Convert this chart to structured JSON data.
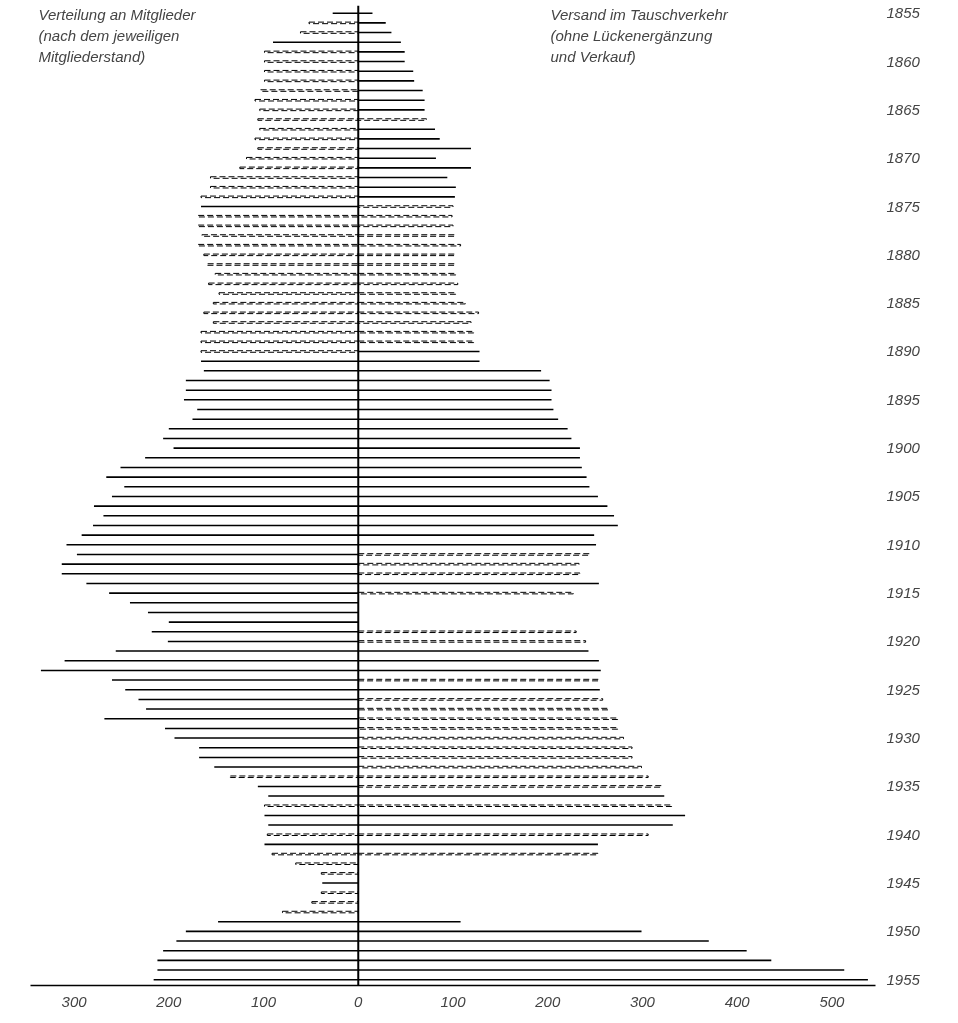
{
  "chart_data": {
    "type": "bar",
    "orientation": "horizontal",
    "categories": [
      "1855",
      null,
      null,
      null,
      null,
      "1860",
      null,
      null,
      null,
      null,
      "1865",
      null,
      null,
      null,
      null,
      "1870",
      null,
      null,
      null,
      null,
      "1875",
      null,
      null,
      null,
      null,
      "1880",
      null,
      null,
      null,
      null,
      "1885",
      null,
      null,
      null,
      null,
      "1890",
      null,
      null,
      null,
      null,
      "1895",
      null,
      null,
      null,
      null,
      "1900",
      null,
      null,
      null,
      null,
      "1905",
      null,
      null,
      null,
      null,
      "1910",
      null,
      null,
      null,
      null,
      "1915",
      null,
      null,
      null,
      null,
      "1920",
      null,
      null,
      null,
      null,
      "1925",
      null,
      null,
      null,
      null,
      "1930",
      null,
      null,
      null,
      null,
      "1935",
      null,
      null,
      null,
      null,
      "1940",
      null,
      null,
      null,
      null,
      "1945",
      null,
      null,
      null,
      null,
      "1950",
      null,
      null,
      null,
      null,
      "1955"
    ],
    "xlim": [
      -346,
      546
    ],
    "xticks": [
      {
        "value": -300,
        "label": "300"
      },
      {
        "value": -200,
        "label": "200"
      },
      {
        "value": -100,
        "label": "100"
      },
      0,
      100,
      200,
      300,
      400,
      500
    ],
    "series": [
      {
        "color": "#000000",
        "line_style": "solid",
        "values": [
          -27,
          null,
          null,
          -90,
          null,
          null,
          null,
          null,
          null,
          null,
          null,
          null,
          null,
          null,
          null,
          null,
          null,
          null,
          null,
          null,
          -166,
          null,
          null,
          null,
          null,
          null,
          null,
          null,
          null,
          null,
          null,
          null,
          null,
          null,
          null,
          null,
          -166,
          -163,
          -182,
          -182,
          -184,
          -170,
          -175,
          -200,
          -206,
          -195,
          -225,
          -251,
          -266,
          -247,
          -260,
          -279,
          -269,
          -280,
          -292,
          -308,
          -297,
          -313,
          -313,
          -287,
          -263,
          -241,
          -222,
          -200,
          -218,
          -201,
          -256,
          -310,
          -335,
          -260,
          -246,
          -232,
          -224,
          -268,
          -204,
          -194,
          -168,
          -168,
          -152,
          null,
          -106,
          -95,
          null,
          -99,
          -95,
          null,
          -99,
          null,
          null,
          null,
          -38,
          null,
          null,
          null,
          -148,
          -182,
          -192,
          -206,
          -212,
          -212,
          -216
        ]
      },
      {
        "color": "#000000",
        "line_style": "dashed",
        "values": [
          null,
          -52,
          -61,
          null,
          -99,
          -99,
          -99,
          -99,
          -103,
          -109,
          -104,
          -106,
          -104,
          -109,
          -106,
          -118,
          -125,
          -156,
          -156,
          -166,
          null,
          -169,
          -169,
          -165,
          -169,
          -163,
          -159,
          -151,
          -158,
          -147,
          -153,
          -163,
          -153,
          -166,
          -166,
          -166,
          null,
          null,
          null,
          null,
          null,
          null,
          null,
          null,
          null,
          null,
          null,
          null,
          null,
          null,
          null,
          null,
          null,
          null,
          null,
          null,
          null,
          null,
          null,
          null,
          null,
          null,
          null,
          null,
          null,
          null,
          null,
          null,
          null,
          null,
          null,
          null,
          null,
          null,
          null,
          null,
          null,
          null,
          null,
          -135,
          null,
          null,
          -99,
          null,
          null,
          -96,
          null,
          -91,
          -66,
          -39,
          null,
          -39,
          -49,
          -80,
          null,
          null,
          null,
          null,
          null,
          null,
          null
        ]
      },
      {
        "color": "#000000",
        "line_style": "solid",
        "values": [
          15,
          29,
          35,
          45,
          49,
          49,
          58,
          59,
          68,
          70,
          70,
          null,
          81,
          86,
          119,
          82,
          119,
          94,
          103,
          102,
          null,
          null,
          null,
          null,
          null,
          null,
          null,
          null,
          null,
          null,
          null,
          null,
          null,
          null,
          null,
          128,
          128,
          193,
          202,
          204,
          204,
          206,
          211,
          221,
          225,
          234,
          234,
          236,
          241,
          244,
          253,
          263,
          270,
          274,
          249,
          251,
          null,
          null,
          null,
          254,
          null,
          null,
          null,
          null,
          null,
          null,
          243,
          254,
          256,
          null,
          255,
          null,
          null,
          null,
          null,
          null,
          null,
          null,
          null,
          null,
          null,
          323,
          null,
          345,
          332,
          null,
          253,
          null,
          null,
          null,
          null,
          null,
          null,
          null,
          108,
          299,
          370,
          410,
          436,
          513,
          538
        ]
      },
      {
        "color": "#000000",
        "line_style": "dashed",
        "values": [
          null,
          null,
          null,
          null,
          null,
          null,
          null,
          null,
          null,
          null,
          null,
          72,
          null,
          null,
          null,
          null,
          null,
          null,
          null,
          null,
          100,
          99,
          100,
          102,
          108,
          102,
          102,
          103,
          105,
          103,
          113,
          127,
          119,
          122,
          122,
          null,
          null,
          null,
          null,
          null,
          null,
          null,
          null,
          null,
          null,
          null,
          null,
          null,
          null,
          null,
          null,
          null,
          null,
          null,
          null,
          null,
          244,
          233,
          234,
          null,
          227,
          null,
          null,
          null,
          230,
          240,
          null,
          null,
          null,
          254,
          null,
          258,
          264,
          274,
          274,
          280,
          289,
          289,
          299,
          306,
          320,
          null,
          331,
          null,
          null,
          306,
          null,
          253,
          null,
          null,
          null,
          null,
          null,
          null,
          null,
          null,
          null,
          null,
          null,
          null,
          null
        ]
      }
    ],
    "ref_lines": [
      {
        "axis": "x",
        "value": 0,
        "color": "#000000"
      }
    ],
    "annotations": [
      "Verteilung an Mitglieder\n(nach dem jeweiligen\nMitgliederstand)",
      "Versand im Tauschverkehr\n(ohne Lückenergänzung\nund Verkauf)"
    ]
  }
}
